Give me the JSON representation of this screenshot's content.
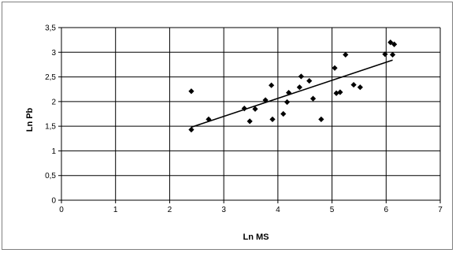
{
  "chart_data": {
    "type": "scatter",
    "title": "",
    "xlabel": "Ln MS",
    "ylabel": "Ln Pb",
    "xlim": [
      0,
      7
    ],
    "ylim": [
      0,
      3.5
    ],
    "x_ticks": [
      "0",
      "1",
      "2",
      "3",
      "4",
      "5",
      "6",
      "7"
    ],
    "y_ticks": [
      "0",
      "0,5",
      "1",
      "1,5",
      "2",
      "2,5",
      "3",
      "3,5"
    ],
    "grid": true,
    "legend": "none",
    "marker_color": "#000000",
    "series": [
      {
        "points": [
          [
            2.4,
            2.21
          ],
          [
            2.4,
            1.43
          ],
          [
            2.72,
            1.64
          ],
          [
            3.38,
            1.86
          ],
          [
            3.48,
            1.6
          ],
          [
            3.58,
            1.85
          ],
          [
            3.77,
            2.03
          ],
          [
            3.88,
            2.33
          ],
          [
            3.9,
            1.64
          ],
          [
            4.1,
            1.75
          ],
          [
            4.17,
            1.99
          ],
          [
            4.2,
            2.18
          ],
          [
            4.4,
            2.29
          ],
          [
            4.43,
            2.51
          ],
          [
            4.58,
            2.42
          ],
          [
            4.65,
            2.06
          ],
          [
            4.8,
            1.64
          ],
          [
            5.05,
            2.68
          ],
          [
            5.08,
            2.17
          ],
          [
            5.15,
            2.19
          ],
          [
            5.25,
            2.95
          ],
          [
            5.4,
            2.34
          ],
          [
            5.52,
            2.29
          ],
          [
            5.98,
            2.96
          ],
          [
            6.08,
            3.2
          ],
          [
            6.12,
            2.95
          ],
          [
            6.15,
            3.16
          ]
        ]
      }
    ],
    "trendline": {
      "x1": 2.4,
      "y1": 1.48,
      "x2": 6.12,
      "y2": 2.84
    }
  }
}
